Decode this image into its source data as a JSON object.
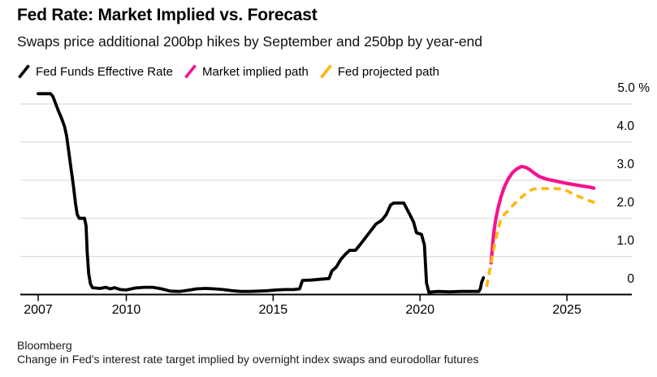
{
  "header": {
    "title": "Fed Rate: Market Implied vs. Forecast",
    "subtitle": "Swaps price additional 200bp hikes by September and 250bp by year-end"
  },
  "legend": {
    "items": [
      {
        "label": "Fed Funds Effective Rate",
        "color": "#000000"
      },
      {
        "label": "Market implied path",
        "color": "#f5138d"
      },
      {
        "label": "Fed projected path",
        "color": "#ffb713"
      }
    ]
  },
  "footer": {
    "source": "Bloomberg",
    "note": "Change in Fed's interest rate target implied by overnight index swaps and eurodollar futures"
  },
  "chart_data": {
    "type": "line",
    "title": "Fed Rate: Market Implied vs. Forecast",
    "subtitle": "Swaps price additional 200bp hikes by September and 250bp by year-end",
    "grid": true,
    "legend_position": "top",
    "colors": {
      "gridline": "#dcdcdc",
      "axis": "#000000",
      "effr": "#000000",
      "market_implied": "#f5138d",
      "fed_projected": "#ffb713"
    },
    "x_axis": {
      "range": [
        2006.4,
        2027.2
      ],
      "ticks": [
        {
          "label": "2007",
          "value": 2007
        },
        {
          "label": "2010",
          "value": 2010
        },
        {
          "label": "2015",
          "value": 2015
        },
        {
          "label": "2020",
          "value": 2020
        },
        {
          "label": "2025",
          "value": 2025
        }
      ]
    },
    "y_axis": {
      "range": [
        0,
        5.4
      ],
      "unit": "%",
      "ticks": [
        {
          "label": "5.0 %",
          "value": 5
        },
        {
          "label": "4.0",
          "value": 4
        },
        {
          "label": "3.0",
          "value": 3
        },
        {
          "label": "2.0",
          "value": 2
        },
        {
          "label": "1.0",
          "value": 1
        },
        {
          "label": "0",
          "value": 0
        }
      ]
    },
    "series": [
      {
        "name": "Fed Funds Effective Rate",
        "color": "#000000",
        "dash": false,
        "points": [
          [
            2007.0,
            5.27
          ],
          [
            2007.42,
            5.27
          ],
          [
            2007.5,
            5.2
          ],
          [
            2007.6,
            5.0
          ],
          [
            2007.7,
            4.8
          ],
          [
            2007.8,
            4.62
          ],
          [
            2007.9,
            4.4
          ],
          [
            2007.97,
            4.15
          ],
          [
            2008.05,
            3.7
          ],
          [
            2008.12,
            3.3
          ],
          [
            2008.2,
            2.85
          ],
          [
            2008.27,
            2.4
          ],
          [
            2008.33,
            2.1
          ],
          [
            2008.4,
            2.0
          ],
          [
            2008.58,
            2.0
          ],
          [
            2008.63,
            1.8
          ],
          [
            2008.67,
            1.1
          ],
          [
            2008.72,
            0.55
          ],
          [
            2008.78,
            0.28
          ],
          [
            2008.85,
            0.18
          ],
          [
            2009.1,
            0.16
          ],
          [
            2009.3,
            0.19
          ],
          [
            2009.45,
            0.15
          ],
          [
            2009.6,
            0.18
          ],
          [
            2009.8,
            0.13
          ],
          [
            2010.0,
            0.12
          ],
          [
            2010.3,
            0.17
          ],
          [
            2010.6,
            0.19
          ],
          [
            2010.9,
            0.19
          ],
          [
            2011.2,
            0.15
          ],
          [
            2011.5,
            0.09
          ],
          [
            2011.8,
            0.08
          ],
          [
            2012.1,
            0.11
          ],
          [
            2012.4,
            0.15
          ],
          [
            2012.7,
            0.16
          ],
          [
            2013.0,
            0.15
          ],
          [
            2013.3,
            0.13
          ],
          [
            2013.6,
            0.1
          ],
          [
            2013.9,
            0.08
          ],
          [
            2014.2,
            0.08
          ],
          [
            2014.5,
            0.09
          ],
          [
            2014.8,
            0.1
          ],
          [
            2015.1,
            0.12
          ],
          [
            2015.4,
            0.13
          ],
          [
            2015.7,
            0.13
          ],
          [
            2015.9,
            0.15
          ],
          [
            2016.0,
            0.37
          ],
          [
            2016.3,
            0.38
          ],
          [
            2016.6,
            0.4
          ],
          [
            2016.9,
            0.42
          ],
          [
            2017.0,
            0.62
          ],
          [
            2017.15,
            0.72
          ],
          [
            2017.3,
            0.92
          ],
          [
            2017.45,
            1.05
          ],
          [
            2017.6,
            1.16
          ],
          [
            2017.8,
            1.16
          ],
          [
            2017.95,
            1.3
          ],
          [
            2018.1,
            1.45
          ],
          [
            2018.3,
            1.65
          ],
          [
            2018.5,
            1.85
          ],
          [
            2018.7,
            1.95
          ],
          [
            2018.85,
            2.1
          ],
          [
            2019.0,
            2.35
          ],
          [
            2019.1,
            2.4
          ],
          [
            2019.45,
            2.4
          ],
          [
            2019.55,
            2.25
          ],
          [
            2019.65,
            2.1
          ],
          [
            2019.78,
            1.9
          ],
          [
            2019.88,
            1.62
          ],
          [
            2020.05,
            1.58
          ],
          [
            2020.15,
            1.3
          ],
          [
            2020.22,
            0.3
          ],
          [
            2020.3,
            0.06
          ],
          [
            2020.6,
            0.08
          ],
          [
            2021.0,
            0.07
          ],
          [
            2021.4,
            0.08
          ],
          [
            2021.8,
            0.08
          ],
          [
            2022.0,
            0.08
          ],
          [
            2022.05,
            0.15
          ],
          [
            2022.1,
            0.33
          ],
          [
            2022.16,
            0.44
          ]
        ]
      },
      {
        "name": "Market implied path",
        "color": "#f5138d",
        "dash": false,
        "points": [
          [
            2022.42,
            0.83
          ],
          [
            2022.46,
            1.2
          ],
          [
            2022.5,
            1.55
          ],
          [
            2022.57,
            1.95
          ],
          [
            2022.65,
            2.25
          ],
          [
            2022.75,
            2.55
          ],
          [
            2022.87,
            2.82
          ],
          [
            2023.0,
            3.03
          ],
          [
            2023.15,
            3.2
          ],
          [
            2023.3,
            3.3
          ],
          [
            2023.45,
            3.36
          ],
          [
            2023.6,
            3.34
          ],
          [
            2023.75,
            3.27
          ],
          [
            2023.9,
            3.18
          ],
          [
            2024.05,
            3.1
          ],
          [
            2024.3,
            3.03
          ],
          [
            2024.6,
            2.98
          ],
          [
            2024.9,
            2.93
          ],
          [
            2025.2,
            2.89
          ],
          [
            2025.5,
            2.85
          ],
          [
            2025.75,
            2.82
          ],
          [
            2025.92,
            2.79
          ]
        ]
      },
      {
        "name": "Fed projected path",
        "color": "#ffb713",
        "dash": true,
        "points": [
          [
            2022.27,
            0.2
          ],
          [
            2022.35,
            0.55
          ],
          [
            2022.45,
            0.95
          ],
          [
            2022.55,
            1.35
          ],
          [
            2022.65,
            1.7
          ],
          [
            2022.75,
            1.95
          ],
          [
            2022.85,
            2.08
          ],
          [
            2023.0,
            2.2
          ],
          [
            2023.15,
            2.33
          ],
          [
            2023.3,
            2.45
          ],
          [
            2023.45,
            2.55
          ],
          [
            2023.6,
            2.65
          ],
          [
            2023.75,
            2.73
          ],
          [
            2023.88,
            2.77
          ],
          [
            2024.2,
            2.78
          ],
          [
            2024.6,
            2.78
          ],
          [
            2024.92,
            2.76
          ],
          [
            2025.1,
            2.68
          ],
          [
            2025.35,
            2.59
          ],
          [
            2025.6,
            2.51
          ],
          [
            2025.8,
            2.45
          ],
          [
            2025.97,
            2.41
          ]
        ]
      }
    ]
  }
}
